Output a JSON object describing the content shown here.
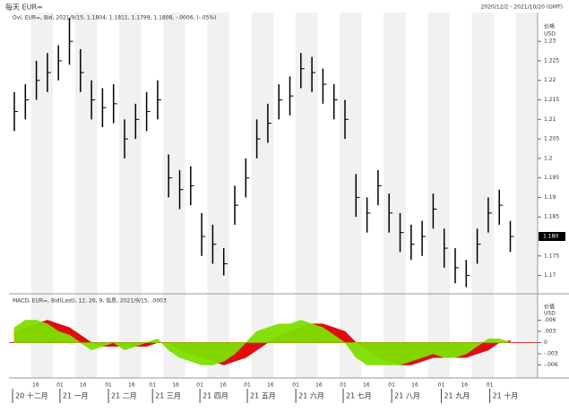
{
  "header": {
    "title": "每天 EUR=",
    "range": "2020/12/2 - 2021/10/20 (GMT)"
  },
  "chart_data": [
    {
      "type": "ohlc",
      "legend": "Ovl, EUR=, Bid, 2021/9/15, 1.1804, 1.1811, 1.1799, 1.1808, -.0006, (-.05%)",
      "axis_title": "价格",
      "axis_unit": "USD",
      "color": "#000000",
      "high": [
        1.217,
        1.219,
        1.225,
        1.227,
        1.229,
        1.236,
        1.228,
        1.22,
        1.218,
        1.219,
        1.21,
        1.214,
        1.217,
        1.22,
        1.201,
        1.197,
        1.198,
        1.186,
        1.183,
        1.177,
        1.193,
        1.2,
        1.21,
        1.214,
        1.219,
        1.221,
        1.227,
        1.226,
        1.223,
        1.219,
        1.215,
        1.196,
        1.19,
        1.197,
        1.191,
        1.186,
        1.183,
        1.184,
        1.191,
        1.182,
        1.177,
        1.174,
        1.182,
        1.19,
        1.192,
        1.184
      ],
      "low": [
        1.207,
        1.21,
        1.215,
        1.217,
        1.22,
        1.224,
        1.217,
        1.21,
        1.208,
        1.209,
        1.2,
        1.205,
        1.207,
        1.21,
        1.19,
        1.187,
        1.188,
        1.175,
        1.173,
        1.17,
        1.183,
        1.19,
        1.2,
        1.204,
        1.21,
        1.211,
        1.218,
        1.217,
        1.214,
        1.21,
        1.205,
        1.185,
        1.181,
        1.188,
        1.181,
        1.176,
        1.174,
        1.175,
        1.182,
        1.172,
        1.168,
        1.167,
        1.173,
        1.181,
        1.183,
        1.176
      ],
      "close": [
        1.212,
        1.215,
        1.22,
        1.222,
        1.225,
        1.23,
        1.222,
        1.215,
        1.213,
        1.214,
        1.205,
        1.21,
        1.212,
        1.215,
        1.195,
        1.192,
        1.193,
        1.18,
        1.178,
        1.173,
        1.188,
        1.195,
        1.205,
        1.209,
        1.215,
        1.216,
        1.223,
        1.222,
        1.219,
        1.215,
        1.21,
        1.19,
        1.186,
        1.193,
        1.186,
        1.181,
        1.178,
        1.18,
        1.187,
        1.177,
        1.172,
        1.17,
        1.178,
        1.186,
        1.188,
        1.18
      ],
      "ylim": [
        1.166,
        1.236
      ],
      "yticks": [
        1.17,
        1.175,
        1.185,
        1.19,
        1.195,
        1.2,
        1.205,
        1.21,
        1.215,
        1.22,
        1.225,
        1.23
      ],
      "last": {
        "value": 1.18,
        "label": "1.180"
      }
    },
    {
      "type": "macd",
      "legend": "MACD, EUR=, Bid(Last), 12, 26, 9, 信息, 2021/9/15, .0003",
      "axis_title": "价值",
      "axis_unit": "USD",
      "series": [
        {
          "name": "MACD",
          "color": "#7fe000",
          "values": [
            0.004,
            0.006,
            0.006,
            0.005,
            0.003,
            0.002,
            0.0,
            -0.002,
            -0.001,
            0.0,
            -0.002,
            -0.001,
            0.0,
            0.001,
            -0.002,
            -0.004,
            -0.005,
            -0.006,
            -0.006,
            -0.005,
            -0.003,
            0.0,
            0.003,
            0.004,
            0.005,
            0.005,
            0.006,
            0.005,
            0.004,
            0.002,
            0.0,
            -0.004,
            -0.006,
            -0.006,
            -0.006,
            -0.006,
            -0.005,
            -0.004,
            -0.003,
            -0.004,
            -0.004,
            -0.003,
            -0.001,
            0.001,
            0.001,
            0.0
          ]
        },
        {
          "name": "Signal",
          "color": "#e00000",
          "values": [
            0.003,
            0.004,
            0.005,
            0.006,
            0.005,
            0.004,
            0.002,
            0.0,
            -0.001,
            -0.001,
            -0.001,
            -0.001,
            -0.001,
            0.0,
            0.0,
            -0.002,
            -0.003,
            -0.004,
            -0.005,
            -0.006,
            -0.005,
            -0.004,
            -0.002,
            0.0,
            0.002,
            0.003,
            0.004,
            0.005,
            0.005,
            0.004,
            0.003,
            0.0,
            -0.002,
            -0.004,
            -0.005,
            -0.006,
            -0.006,
            -0.005,
            -0.004,
            -0.004,
            -0.004,
            -0.004,
            -0.003,
            -0.002,
            0.0,
            0.0005
          ]
        }
      ],
      "ylim": [
        -0.009,
        0.009
      ],
      "yticks": [
        {
          "value": 0.006,
          "label": ".006"
        },
        {
          "value": 0.003,
          "label": ".003"
        },
        0,
        {
          "value": -0.003,
          "label": "-.003"
        },
        {
          "value": -0.006,
          "label": "-.006"
        }
      ]
    }
  ],
  "x_axis": {
    "days": [
      "16",
      "01",
      "16",
      "01",
      "16",
      "01",
      "16",
      "01",
      "16",
      "01",
      "16",
      "01",
      "16",
      "01",
      "16",
      "01",
      "16",
      "01",
      "16",
      "01"
    ],
    "months": [
      "20 十二月",
      "21 一月",
      "21 二月",
      "21 三月",
      "21 四月",
      "21 五月",
      "21 六月",
      "21 七月",
      "21 八月",
      "21 九月",
      "21 十月"
    ]
  }
}
